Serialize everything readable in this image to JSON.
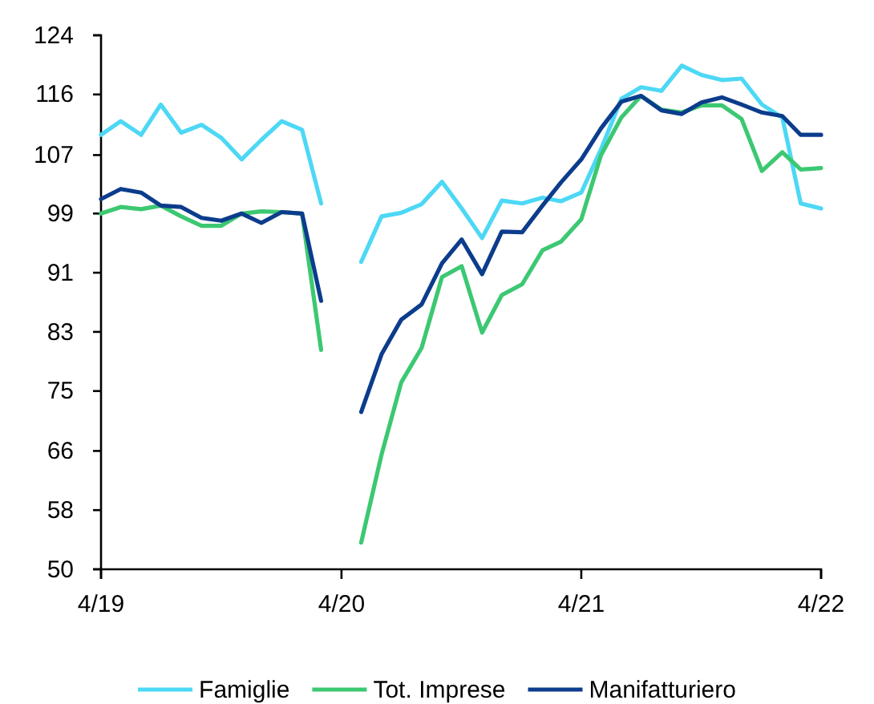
{
  "chart_data": {
    "type": "line",
    "x": [
      "2019-04",
      "2019-05",
      "2019-06",
      "2019-07",
      "2019-08",
      "2019-09",
      "2019-10",
      "2019-11",
      "2019-12",
      "2020-01",
      "2020-02",
      "2020-03",
      "2020-04",
      "2020-05",
      "2020-06",
      "2020-07",
      "2020-08",
      "2020-09",
      "2020-10",
      "2020-11",
      "2020-12",
      "2021-01",
      "2021-02",
      "2021-03",
      "2021-04",
      "2021-05",
      "2021-06",
      "2021-07",
      "2021-08",
      "2021-09",
      "2021-10",
      "2021-11",
      "2021-12",
      "2022-01",
      "2022-02",
      "2022-03",
      "2022-04"
    ],
    "series": [
      {
        "name": "Famiglie",
        "color": "#4dd8f5",
        "values": [
          110.2,
          112.1,
          110.2,
          114.4,
          110.5,
          111.6,
          109.8,
          106.8,
          109.5,
          112.1,
          110.9,
          100.7,
          null,
          92.6,
          98.9,
          99.4,
          100.6,
          103.7,
          100,
          95.9,
          101.1,
          100.7,
          101.5,
          101,
          102.2,
          108.2,
          115.2,
          116.8,
          116.3,
          119.8,
          118.5,
          117.8,
          118,
          114.4,
          112.6,
          100.7,
          100
        ]
      },
      {
        "name": "Tot. Imprese",
        "color": "#3cc872",
        "values": [
          99.3,
          100.2,
          99.9,
          100.4,
          98.9,
          97.6,
          97.6,
          99.3,
          99.6,
          99.5,
          99.3,
          80.4,
          null,
          53.7,
          65.9,
          75.9,
          80.7,
          90.5,
          92,
          82.8,
          88,
          89.5,
          94.2,
          95.4,
          98.5,
          107.4,
          112.6,
          115.6,
          113.7,
          113.3,
          114.3,
          114.3,
          112.4,
          105.2,
          107.8,
          105.4,
          105.6
        ]
      },
      {
        "name": "Manifatturiero",
        "color": "#0c3c8c",
        "values": [
          101.3,
          102.7,
          102.2,
          100.4,
          100.2,
          98.7,
          98.3,
          99.3,
          98,
          99.5,
          99.3,
          87.2,
          null,
          71.8,
          79.8,
          84.6,
          86.7,
          92.4,
          95.7,
          90.9,
          96.8,
          96.7,
          100.4,
          103.6,
          106.8,
          111.1,
          114.8,
          115.6,
          113.6,
          113.1,
          114.7,
          115.4,
          114.4,
          113.3,
          112.8,
          110.2,
          110.2
        ]
      }
    ],
    "xlim": [
      "2019-04",
      "2022-04"
    ],
    "xticks": [
      {
        "value": "2019-04",
        "label": "4/19"
      },
      {
        "value": "2020-04",
        "label": "4/20"
      },
      {
        "value": "2021-04",
        "label": "4/21"
      },
      {
        "value": "2022-04",
        "label": "4/22"
      }
    ],
    "ylim": [
      50,
      124
    ],
    "yticks": [
      50,
      {
        "value": 58.2,
        "label": "58"
      },
      {
        "value": 66.4,
        "label": "66"
      },
      {
        "value": 74.7,
        "label": "75"
      },
      {
        "value": 82.9,
        "label": "83"
      },
      {
        "value": 91.1,
        "label": "91"
      },
      {
        "value": 99.3,
        "label": "99"
      },
      {
        "value": 107.4,
        "label": "107"
      },
      {
        "value": 115.8,
        "label": "116"
      },
      124
    ],
    "grid": false,
    "legend": "bottom",
    "marker": "none",
    "line_style": "solid"
  }
}
